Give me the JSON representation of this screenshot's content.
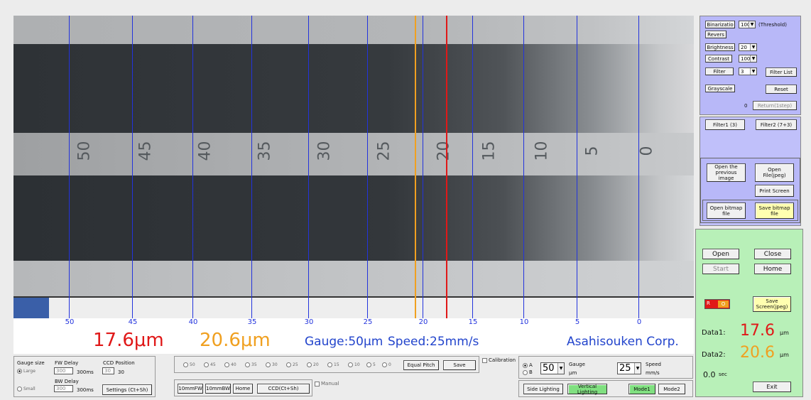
{
  "scale_numbers": [
    "50",
    "45",
    "40",
    "35",
    "30",
    "25",
    "20",
    "15",
    "10",
    "5",
    "0"
  ],
  "tick_labels": [
    "50",
    "45",
    "40",
    "35",
    "30",
    "25",
    "20",
    "15",
    "10",
    "5",
    "0"
  ],
  "readout": {
    "data1": "17.6μm",
    "data2": "20.6μm",
    "gauge": "Gauge:50μm",
    "speed": "Speed:25mm/s",
    "company": "Asahisouken Corp."
  },
  "filter_panel": {
    "binarization_label": "Binarizatio",
    "binarization_value": "100",
    "threshold_label": "(Threshold)",
    "revers_label": "Revers",
    "brightness_label": "Brightness",
    "brightness_value": "20",
    "contrast_label": "Contrast",
    "contrast_value": "100",
    "filter_label": "Filter",
    "filter_value": "3",
    "filter_list_label": "Filter List",
    "grayscale_label": "Grayscale",
    "reset_label": "Reset",
    "step_count": "0",
    "return_label": "Return(1step)"
  },
  "filter_presets": {
    "filter1": "Filter1 (3)",
    "filter2": "Filter2 (7+3)"
  },
  "file_panel": {
    "open_previous": "Open the previous image",
    "open_file": "Open File(jpeg)",
    "print_screen": "Print Screen",
    "open_bitmap": "Open bitmap file",
    "save_bitmap": "Save bitmap file"
  },
  "control_panel": {
    "open": "Open",
    "close": "Close",
    "start": "Start",
    "home": "Home",
    "indicator_a": "R",
    "indicator_b": "O",
    "save_screen": "Save Screen(jpeg)",
    "data1_label": "Data1:",
    "data1_value": "17.6",
    "data2_label": "Data2:",
    "data2_value": "20.6",
    "unit": "μm",
    "time_value": "0.0",
    "time_unit": "sec",
    "exit": "Exit"
  },
  "settings_box": {
    "gauge_size_label": "Gauge size",
    "large_label": "Large",
    "small_label": "Small",
    "fw_delay_label": "FW Delay",
    "fw_delay_value": "300",
    "fw_delay_unit": "300ms",
    "bw_delay_label": "BW Delay",
    "bw_delay_value": "300",
    "bw_delay_unit": "300ms",
    "ccd_position_label": "CCD Position",
    "ccd_position_value": "30",
    "ccd_position_display": "30",
    "settings_button": "Settings (Ct+Sh)"
  },
  "position_box": {
    "radio_labels": [
      "50",
      "45",
      "40",
      "35",
      "30",
      "25",
      "20",
      "15",
      "10",
      "5",
      "0"
    ],
    "equal_pitch": "Equal Pitch",
    "save": "Save",
    "calibration": "Calibration",
    "manual": "Manual"
  },
  "move_buttons": {
    "fw10": "10mmFW",
    "bw10": "10mmBW",
    "home": "Home",
    "ccd": "CCD(Ct+Sh)"
  },
  "gauge_box": {
    "a_label": "A",
    "b_label": "B",
    "gauge_value": "50",
    "gauge_label": "Gauge",
    "gauge_unit": "μm",
    "speed_value": "25",
    "speed_label": "Speed",
    "speed_unit": "mm/s"
  },
  "lighting_buttons": {
    "side": "Side Lighting",
    "vertical": "Vertical Lighting",
    "mode1": "Mode1",
    "mode2": "Mode2"
  },
  "colors": {
    "gauge_line": "#2233dd",
    "data1": "#e01818",
    "data2": "#f0a020",
    "filter_panel": "#b8b8f8",
    "control_panel": "#b8f0b8"
  }
}
